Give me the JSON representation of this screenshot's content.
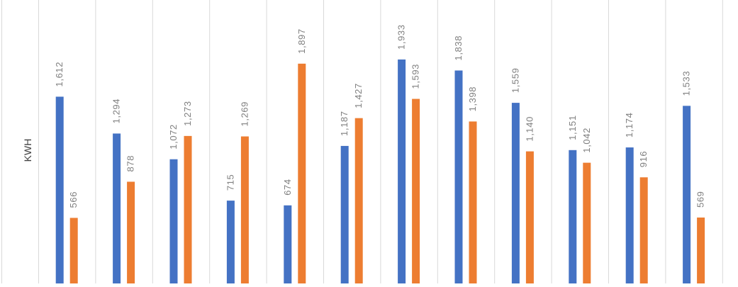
{
  "chart_data": {
    "type": "bar",
    "title": "",
    "xlabel": "",
    "ylabel": "KWH",
    "categories": [
      "",
      "",
      "",
      "",
      "",
      "",
      "",
      "",
      "",
      "",
      "",
      ""
    ],
    "series": [
      {
        "values": [
          1612,
          1294,
          1072,
          715,
          674,
          1187,
          1933,
          1838,
          1559,
          1151,
          1174,
          1533
        ],
        "labels": [
          "1,612",
          "1,294",
          "1,072",
          "715",
          "674",
          "1,187",
          "1,933",
          "1,838",
          "1,559",
          "1,151",
          "1,174",
          "1,533"
        ],
        "color": "#4472C4"
      },
      {
        "values": [
          566,
          878,
          1273,
          1269,
          1897,
          1427,
          1593,
          1398,
          1140,
          1042,
          916,
          569
        ],
        "labels": [
          "566",
          "878",
          "1,273",
          "1,269",
          "1,897",
          "1,427",
          "1,593",
          "1,398",
          "1,140",
          "1,042",
          "916",
          "569"
        ],
        "color": "#ED7D31"
      }
    ],
    "gridlines": "vertical category separators",
    "data_label_color": "#7F7F7F",
    "gridline_color": "#D9D9D9"
  }
}
